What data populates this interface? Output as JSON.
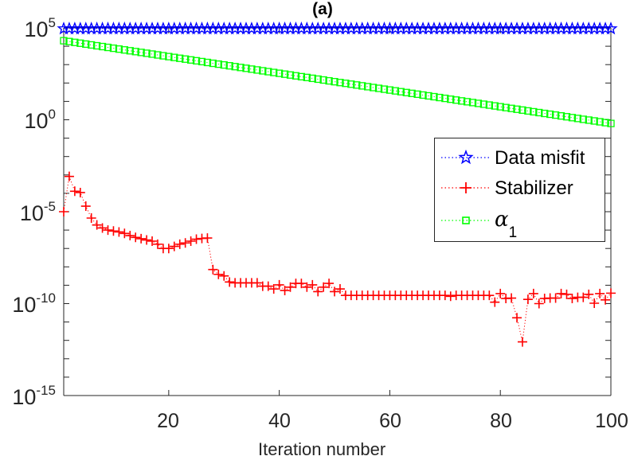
{
  "chart_data": {
    "type": "line",
    "title": "(a)",
    "xlabel": "Iteration number",
    "ylabel": "",
    "xlim": [
      1,
      100
    ],
    "ylim": [
      1e-15,
      100000.0
    ],
    "yscale": "log",
    "grid": false,
    "legend_position": "right, upper-middle",
    "x_ticks": [
      "20",
      "40",
      "60",
      "80",
      "100"
    ],
    "y_ticks": [
      {
        "base": "10",
        "exp": "5"
      },
      {
        "base": "10",
        "exp": "0"
      },
      {
        "base": "10",
        "exp": "-5"
      },
      {
        "base": "10",
        "exp": "-10"
      },
      {
        "base": "10",
        "exp": "-15"
      }
    ],
    "series": [
      {
        "name": "Data misfit",
        "color": "#0000ff",
        "marker": "star",
        "linestyle": "dotted",
        "values": [
          90000.0,
          90000.0,
          90000.0,
          90000.0,
          90000.0,
          90000.0,
          90000.0,
          90000.0,
          90000.0,
          90000.0,
          90000.0,
          90000.0,
          90000.0,
          90000.0,
          90000.0,
          90000.0,
          90000.0,
          90000.0,
          90000.0,
          90000.0,
          90000.0,
          90000.0,
          90000.0,
          90000.0,
          90000.0,
          90000.0,
          90000.0,
          90000.0,
          90000.0,
          90000.0,
          90000.0,
          90000.0,
          90000.0,
          90000.0,
          90000.0,
          90000.0,
          90000.0,
          90000.0,
          90000.0,
          90000.0,
          90000.0,
          90000.0,
          90000.0,
          90000.0,
          90000.0,
          90000.0,
          90000.0,
          90000.0,
          90000.0,
          90000.0,
          90000.0,
          90000.0,
          90000.0,
          90000.0,
          90000.0,
          90000.0,
          90000.0,
          90000.0,
          90000.0,
          90000.0,
          90000.0,
          90000.0,
          90000.0,
          90000.0,
          90000.0,
          90000.0,
          90000.0,
          90000.0,
          90000.0,
          90000.0,
          90000.0,
          90000.0,
          90000.0,
          90000.0,
          90000.0,
          90000.0,
          90000.0,
          90000.0,
          90000.0,
          90000.0,
          90000.0,
          90000.0,
          90000.0,
          90000.0,
          90000.0,
          90000.0,
          90000.0,
          90000.0,
          90000.0,
          90000.0,
          90000.0,
          90000.0,
          90000.0,
          90000.0,
          90000.0,
          90000.0,
          90000.0,
          90000.0,
          90000.0,
          90000.0
        ]
      },
      {
        "name": "Stabilizer",
        "color": "#ff0000",
        "marker": "plus",
        "linestyle": "dotted",
        "values": [
          1e-05,
          0.00083,
          0.00013,
          0.00011,
          2e-05,
          4.5e-06,
          1.9e-06,
          1.3e-06,
          1e-06,
          8.9e-07,
          7.9e-07,
          6.6e-07,
          5e-07,
          4e-07,
          3.4e-07,
          2.9e-07,
          2.5e-07,
          1.7e-07,
          1e-07,
          1e-07,
          1.3e-07,
          1.7e-07,
          2e-07,
          2.5e-07,
          3.2e-07,
          3.5e-07,
          3.7e-07,
          7.1e-09,
          3.9e-09,
          3.2e-09,
          1.5e-09,
          1.35e-09,
          1.35e-09,
          1.35e-09,
          1.35e-09,
          1.35e-09,
          8.9e-10,
          8.9e-10,
          6.3e-10,
          1.05e-09,
          5.2e-10,
          7.9e-10,
          1.26e-09,
          1.26e-09,
          7.9e-10,
          1.05e-09,
          4.5e-10,
          7.9e-10,
          1.26e-09,
          4.5e-10,
          6.3e-10,
          2.8e-10,
          2.8e-10,
          2.8e-10,
          2.8e-10,
          2.8e-10,
          2.8e-10,
          2.8e-10,
          2.8e-10,
          2.8e-10,
          2.8e-10,
          2.8e-10,
          2.8e-10,
          2.8e-10,
          2.8e-10,
          2.8e-10,
          2.8e-10,
          2.8e-10,
          2.8e-10,
          2.8e-10,
          2.5e-10,
          2.8e-10,
          2.8e-10,
          2.8e-10,
          2.8e-10,
          2.8e-10,
          2.8e-10,
          2.8e-10,
          1.2e-10,
          3.5e-10,
          1.9e-10,
          2e-10,
          1.7e-11,
          8.3e-13,
          1.7e-10,
          3.5e-10,
          1e-10,
          1.9e-10,
          2e-10,
          2e-10,
          3.5e-10,
          3.2e-10,
          1.9e-10,
          2.2e-10,
          2.2e-10,
          3.2e-10,
          1.05e-10,
          3.5e-10,
          1.6e-10,
          3.7e-10
        ]
      },
      {
        "name": "α",
        "name_subscript": "1",
        "color": "#00ff00",
        "marker": "square",
        "linestyle": "dotted",
        "values": [
          20000.0,
          18000.0,
          16200.0,
          14600.0,
          13100.0,
          11800.0,
          10600.0,
          9590.0,
          8640.0,
          7780.0,
          7000.0,
          6310.0,
          5680.0,
          5120.0,
          4610.0,
          4150.0,
          3740.0,
          3370.0,
          3030.0,
          2730.0,
          2460.0,
          2210.0,
          2000.0,
          1800.0,
          1620.0,
          1460.0,
          1310.0,
          1180.0,
          1060.0,
          959.0,
          864.0,
          778.0,
          700.0,
          631.0,
          568.0,
          512.0,
          461.0,
          415.0,
          374.0,
          337.0,
          303.0,
          273.0,
          246.0,
          221.0,
          200.0,
          180.0,
          162.0,
          146.0,
          131.0,
          118.0,
          106.0,
          95.9,
          86.4,
          77.8,
          70.0,
          63.1,
          56.8,
          51.2,
          46.1,
          41.5,
          37.4,
          33.7,
          30.3,
          27.3,
          24.6,
          22.1,
          20.0,
          18.0,
          16.2,
          14.6,
          13.1,
          11.8,
          10.6,
          9.59,
          8.64,
          7.78,
          7.0,
          6.31,
          5.68,
          5.12,
          4.61,
          4.15,
          3.74,
          3.37,
          3.03,
          2.73,
          2.46,
          2.21,
          2.0,
          1.8,
          1.62,
          1.46,
          1.31,
          1.18,
          1.06,
          0.959,
          0.864,
          0.778,
          0.7,
          0.631
        ]
      }
    ]
  }
}
